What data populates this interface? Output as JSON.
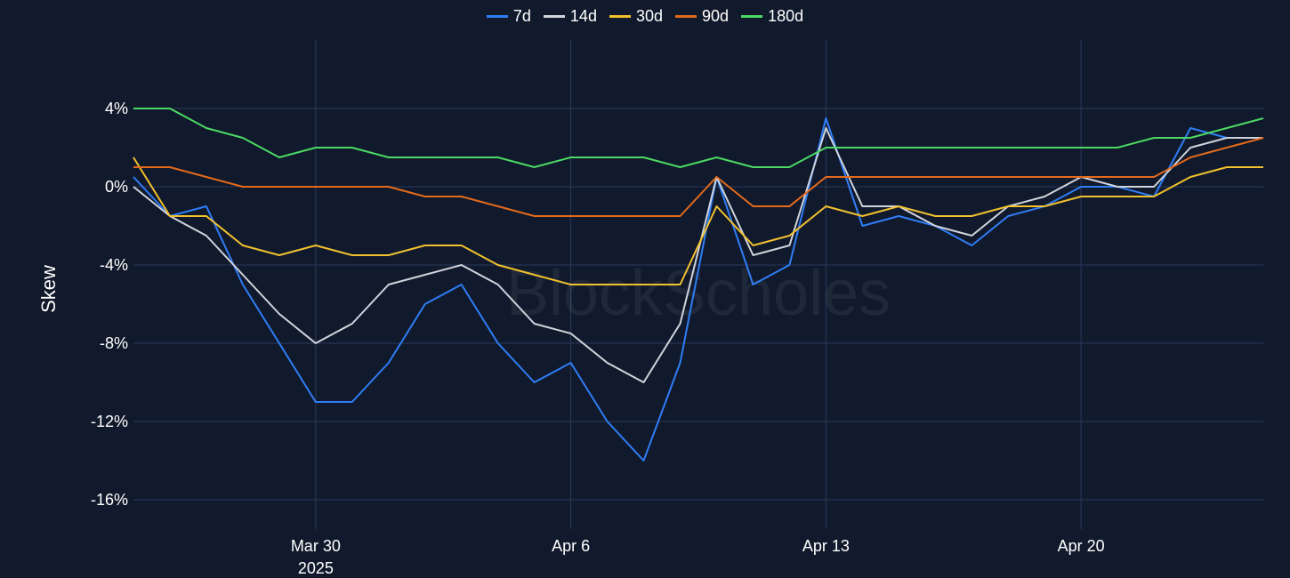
{
  "chart_data": {
    "type": "line",
    "title": "",
    "xlabel": "",
    "ylabel": "Skew",
    "watermark": "BlockScholes",
    "x_start": "2025-03-25",
    "x_end": "2025-04-25",
    "xlim": [
      "2025-03-25",
      "2025-04-25"
    ],
    "ylim": [
      -17.5,
      7.5
    ],
    "y_ticks": [
      4,
      0,
      -4,
      -8,
      -12,
      -16
    ],
    "y_tick_labels": [
      "4%",
      "0%",
      "-4%",
      "-8%",
      "-12%",
      "-16%"
    ],
    "x_ticks": [
      "2025-03-30",
      "2025-04-06",
      "2025-04-13",
      "2025-04-20"
    ],
    "x_tick_labels": [
      "Mar 30",
      "Apr 6",
      "Apr 13",
      "Apr 20"
    ],
    "x_tick_sublabel": "2025",
    "grid": true,
    "legend_position": "top-center",
    "series": [
      {
        "name": "7d",
        "color": "#2f7df6",
        "x": [
          "2025-03-25",
          "2025-03-26",
          "2025-03-27",
          "2025-03-28",
          "2025-03-29",
          "2025-03-30",
          "2025-03-31",
          "2025-04-01",
          "2025-04-02",
          "2025-04-03",
          "2025-04-04",
          "2025-04-05",
          "2025-04-06",
          "2025-04-07",
          "2025-04-08",
          "2025-04-09",
          "2025-04-10",
          "2025-04-11",
          "2025-04-12",
          "2025-04-13",
          "2025-04-14",
          "2025-04-15",
          "2025-04-16",
          "2025-04-17",
          "2025-04-18",
          "2025-04-19",
          "2025-04-20",
          "2025-04-21",
          "2025-04-22",
          "2025-04-23",
          "2025-04-24",
          "2025-04-25"
        ],
        "values": [
          0.5,
          -1.5,
          -1,
          -5,
          -8,
          -11,
          -11,
          -9,
          -6,
          -5,
          -8,
          -10,
          -9,
          -12,
          -14,
          -9,
          0.5,
          -5,
          -4,
          3.5,
          -2,
          -1.5,
          -2,
          -3,
          -1.5,
          -1,
          0,
          0,
          -0.5,
          3,
          2.5,
          2.5
        ]
      },
      {
        "name": "14d",
        "color": "#d0d4dc",
        "x": [
          "2025-03-25",
          "2025-03-26",
          "2025-03-27",
          "2025-03-28",
          "2025-03-29",
          "2025-03-30",
          "2025-03-31",
          "2025-04-01",
          "2025-04-02",
          "2025-04-03",
          "2025-04-04",
          "2025-04-05",
          "2025-04-06",
          "2025-04-07",
          "2025-04-08",
          "2025-04-09",
          "2025-04-10",
          "2025-04-11",
          "2025-04-12",
          "2025-04-13",
          "2025-04-14",
          "2025-04-15",
          "2025-04-16",
          "2025-04-17",
          "2025-04-18",
          "2025-04-19",
          "2025-04-20",
          "2025-04-21",
          "2025-04-22",
          "2025-04-23",
          "2025-04-24",
          "2025-04-25"
        ],
        "values": [
          0,
          -1.5,
          -2.5,
          -4.5,
          -6.5,
          -8,
          -7,
          -5,
          -4.5,
          -4,
          -5,
          -7,
          -7.5,
          -9,
          -10,
          -7,
          0.5,
          -3.5,
          -3,
          3,
          -1,
          -1,
          -2,
          -2.5,
          -1,
          -0.5,
          0.5,
          0,
          0,
          2,
          2.5,
          2.5
        ]
      },
      {
        "name": "30d",
        "color": "#f2c12e",
        "x": [
          "2025-03-25",
          "2025-03-26",
          "2025-03-27",
          "2025-03-28",
          "2025-03-29",
          "2025-03-30",
          "2025-03-31",
          "2025-04-01",
          "2025-04-02",
          "2025-04-03",
          "2025-04-04",
          "2025-04-05",
          "2025-04-06",
          "2025-04-07",
          "2025-04-08",
          "2025-04-09",
          "2025-04-10",
          "2025-04-11",
          "2025-04-12",
          "2025-04-13",
          "2025-04-14",
          "2025-04-15",
          "2025-04-16",
          "2025-04-17",
          "2025-04-18",
          "2025-04-19",
          "2025-04-20",
          "2025-04-21",
          "2025-04-22",
          "2025-04-23",
          "2025-04-24",
          "2025-04-25"
        ],
        "values": [
          1.5,
          -1.5,
          -1.5,
          -3,
          -3.5,
          -3,
          -3.5,
          -3.5,
          -3,
          -3,
          -4,
          -4.5,
          -5,
          -5,
          -5,
          -5,
          -1,
          -3,
          -2.5,
          -1,
          -1.5,
          -1,
          -1.5,
          -1.5,
          -1,
          -1,
          -0.5,
          -0.5,
          -0.5,
          0.5,
          1,
          1
        ]
      },
      {
        "name": "90d",
        "color": "#e46a1b",
        "x": [
          "2025-03-25",
          "2025-03-26",
          "2025-03-27",
          "2025-03-28",
          "2025-03-29",
          "2025-03-30",
          "2025-03-31",
          "2025-04-01",
          "2025-04-02",
          "2025-04-03",
          "2025-04-04",
          "2025-04-05",
          "2025-04-06",
          "2025-04-07",
          "2025-04-08",
          "2025-04-09",
          "2025-04-10",
          "2025-04-11",
          "2025-04-12",
          "2025-04-13",
          "2025-04-14",
          "2025-04-15",
          "2025-04-16",
          "2025-04-17",
          "2025-04-18",
          "2025-04-19",
          "2025-04-20",
          "2025-04-21",
          "2025-04-22",
          "2025-04-23",
          "2025-04-24",
          "2025-04-25"
        ],
        "values": [
          1,
          1,
          0.5,
          0,
          0,
          0,
          0,
          0,
          -0.5,
          -0.5,
          -1,
          -1.5,
          -1.5,
          -1.5,
          -1.5,
          -1.5,
          0.5,
          -1,
          -1,
          0.5,
          0.5,
          0.5,
          0.5,
          0.5,
          0.5,
          0.5,
          0.5,
          0.5,
          0.5,
          1.5,
          2,
          2.5
        ]
      },
      {
        "name": "180d",
        "color": "#4cd964",
        "x": [
          "2025-03-25",
          "2025-03-26",
          "2025-03-27",
          "2025-03-28",
          "2025-03-29",
          "2025-03-30",
          "2025-03-31",
          "2025-04-01",
          "2025-04-02",
          "2025-04-03",
          "2025-04-04",
          "2025-04-05",
          "2025-04-06",
          "2025-04-07",
          "2025-04-08",
          "2025-04-09",
          "2025-04-10",
          "2025-04-11",
          "2025-04-12",
          "2025-04-13",
          "2025-04-14",
          "2025-04-15",
          "2025-04-16",
          "2025-04-17",
          "2025-04-18",
          "2025-04-19",
          "2025-04-20",
          "2025-04-21",
          "2025-04-22",
          "2025-04-23",
          "2025-04-24",
          "2025-04-25"
        ],
        "values": [
          4,
          4,
          3,
          2.5,
          1.5,
          2,
          2,
          1.5,
          1.5,
          1.5,
          1.5,
          1,
          1.5,
          1.5,
          1.5,
          1,
          1.5,
          1,
          1,
          2,
          2,
          2,
          2,
          2,
          2,
          2,
          2,
          2,
          2.5,
          2.5,
          3,
          3.5
        ]
      }
    ]
  }
}
